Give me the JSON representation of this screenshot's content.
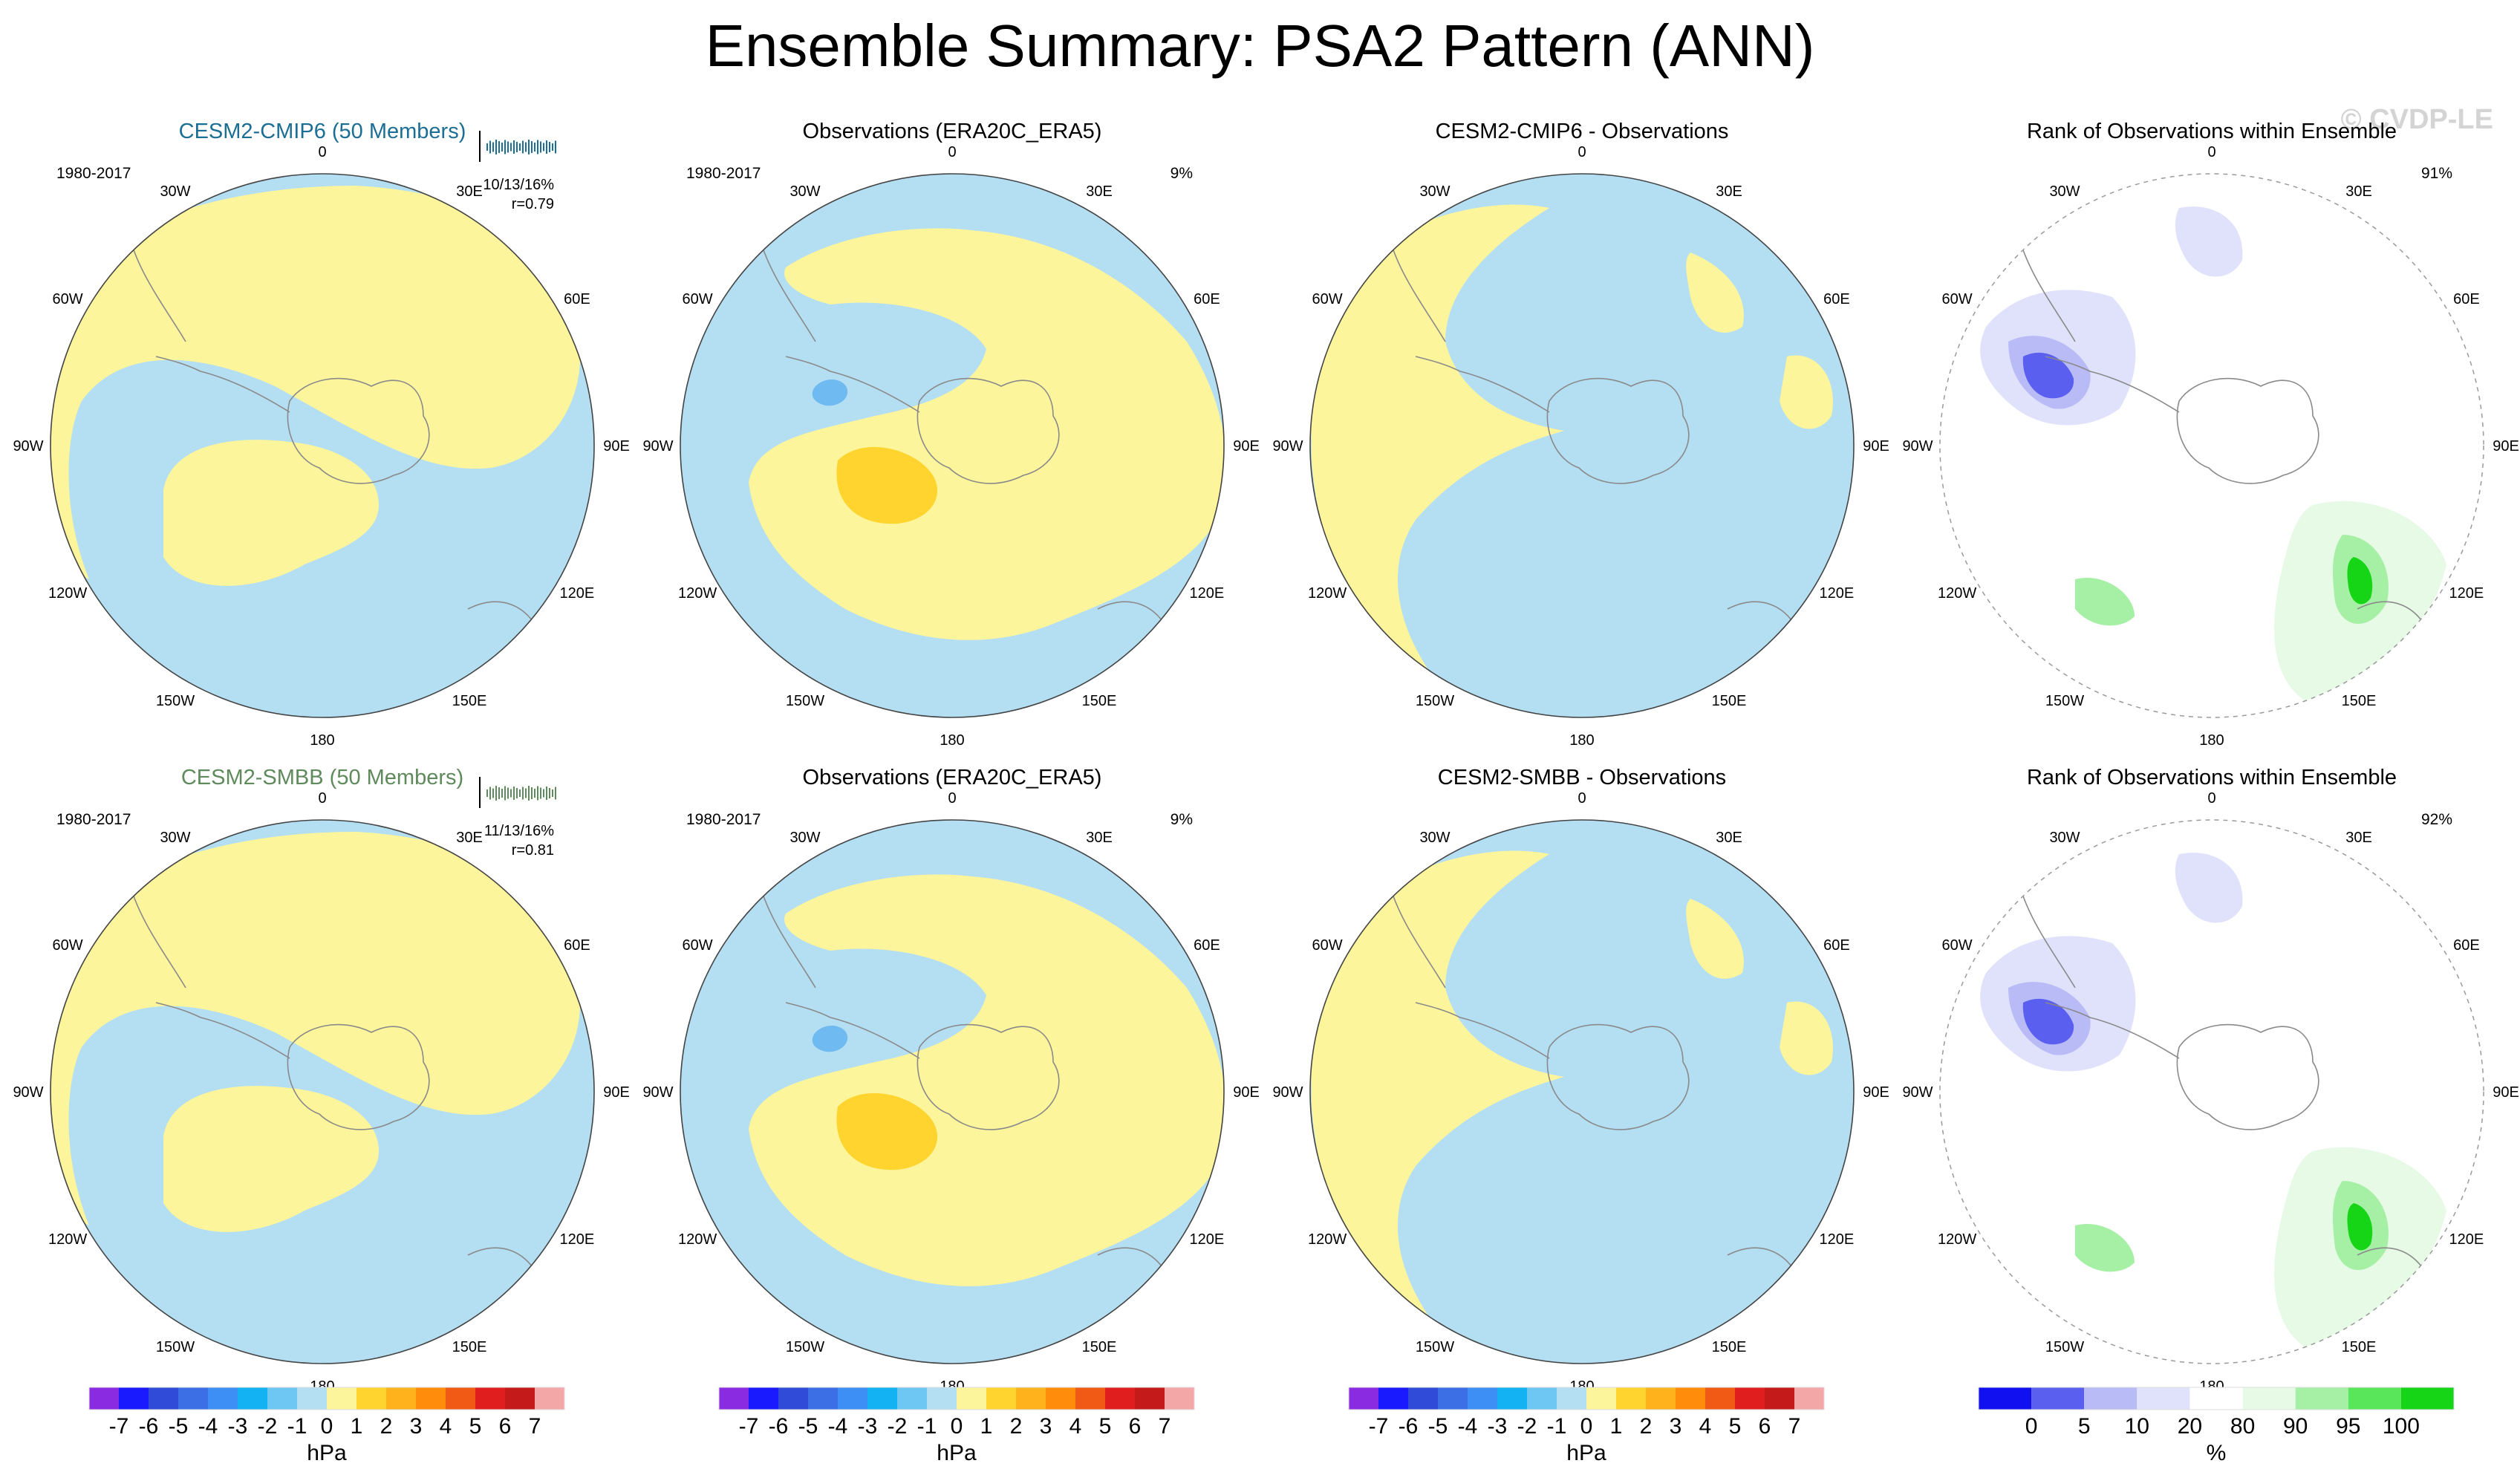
{
  "title": "Ensemble Summary: PSA2 Pattern (ANN)",
  "watermark": "© CVDP-LE",
  "colors": {
    "blue": "#b4def2",
    "yellow": "#fdf59c",
    "orange": "#ffd42e",
    "midblue": "#6fbaf0",
    "land": "#8a8a8a",
    "rank_light_blue": "#e0e2fb",
    "rank_blue": "#b9bbf7",
    "rank_dark_blue": "#5a5ff0",
    "rank_light_green": "#e6fae6",
    "rank_green": "#a6f0a6",
    "rank_dark_green": "#16d516",
    "model1": "#1c6e94",
    "model2": "#5f8a5c"
  },
  "lon_labels": [
    "0",
    "30E",
    "60E",
    "90E",
    "120E",
    "150E",
    "180",
    "150W",
    "120W",
    "90W",
    "60W",
    "30W"
  ],
  "rows": [
    {
      "model": {
        "title": "CESM2-CMIP6 (50 Members)",
        "years": "1980-2017",
        "stats1": "10/13/16%",
        "stats2": "r=0.79"
      },
      "obs": {
        "title": "Observations (ERA20C_ERA5)",
        "years": "1980-2017",
        "pct": "9%"
      },
      "diff": {
        "title": "CESM2-CMIP6 - Observations"
      },
      "rank": {
        "title": "Rank of Observations within Ensemble",
        "pct": "91%"
      }
    },
    {
      "model": {
        "title": "CESM2-SMBB (50 Members)",
        "years": "1980-2017",
        "stats1": "11/13/16%",
        "stats2": "r=0.81"
      },
      "obs": {
        "title": "Observations (ERA20C_ERA5)",
        "years": "1980-2017",
        "pct": "9%"
      },
      "diff": {
        "title": "CESM2-SMBB - Observations"
      },
      "rank": {
        "title": "Rank of Observations within Ensemble",
        "pct": "92%"
      }
    }
  ],
  "chart_data": [
    {
      "type": "colorbar",
      "units": "hPa",
      "tick_labels": [
        "-7",
        "-6",
        "-5",
        "-4",
        "-3",
        "-2",
        "-1",
        "0",
        "1",
        "2",
        "3",
        "4",
        "5",
        "6",
        "7"
      ],
      "colors": [
        "#8a2be2",
        "#1a1aff",
        "#2f4bd8",
        "#3c6fe6",
        "#3d8ff5",
        "#13b2f2",
        "#6ec6f2",
        "#b4def2",
        "#fdf59c",
        "#ffd42e",
        "#ffb21c",
        "#ff8c0a",
        "#f05a14",
        "#e01e1e",
        "#c41a1a",
        "#f4a7a7"
      ]
    },
    {
      "type": "colorbar",
      "units": "%",
      "tick_labels": [
        "0",
        "5",
        "10",
        "20",
        "80",
        "90",
        "95",
        "100"
      ],
      "colors": [
        "#1010f0",
        "#5a5ff0",
        "#b9bbf7",
        "#e0e2fb",
        "#ffffff",
        "#e6fae6",
        "#a6f0a6",
        "#5ae65a",
        "#16d516"
      ]
    }
  ]
}
